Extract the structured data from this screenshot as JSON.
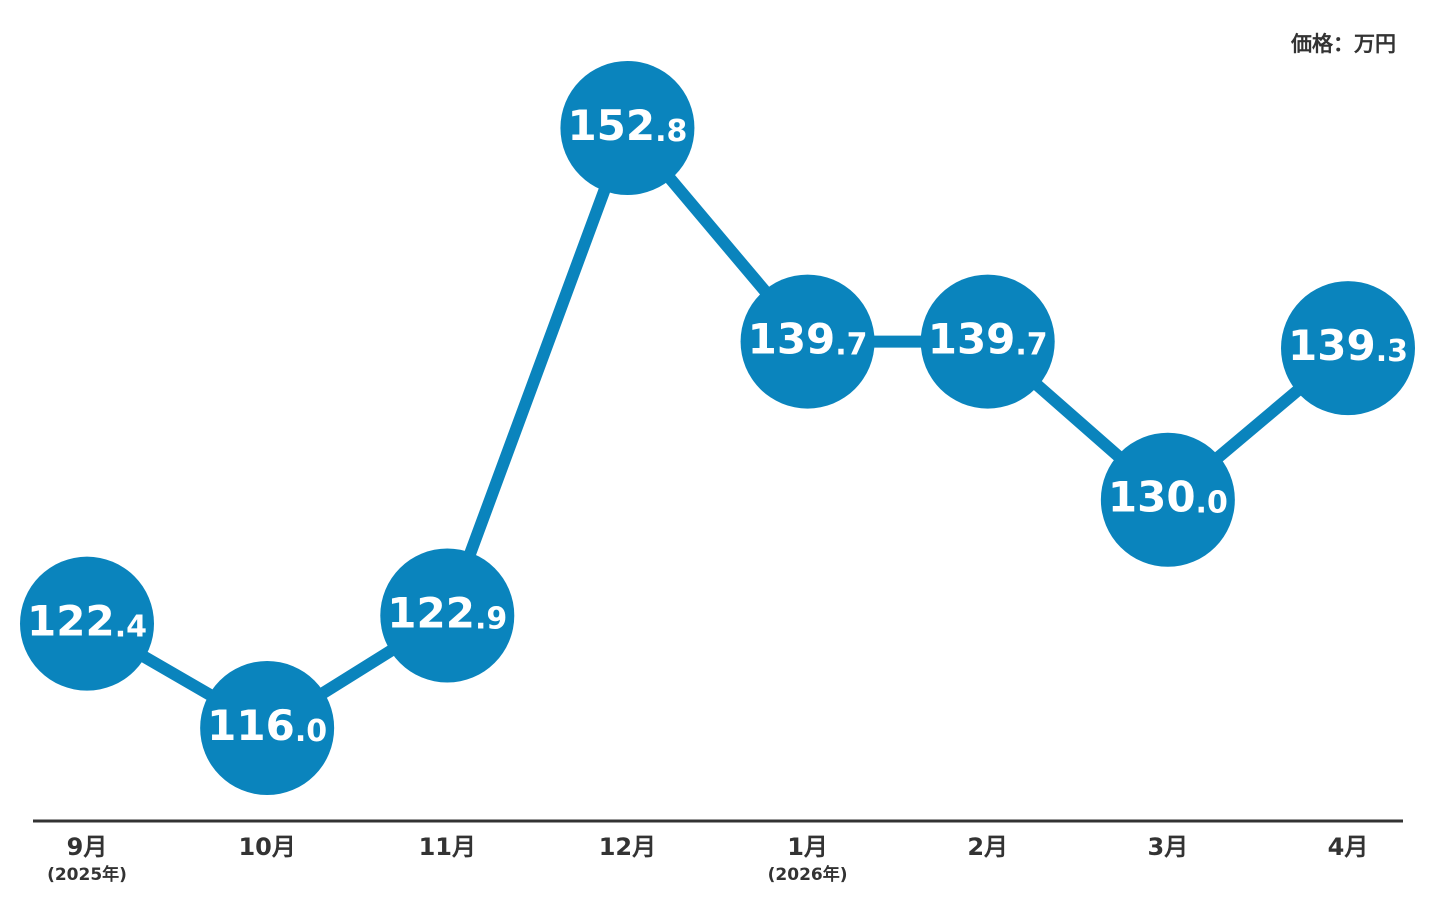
{
  "chart_data": {
    "type": "line",
    "unit_label": "価格：万円",
    "categories": [
      "9月",
      "10月",
      "11月",
      "12月",
      "1月",
      "2月",
      "3月",
      "4月"
    ],
    "sublabels": [
      "(2025年)",
      null,
      null,
      null,
      "(2026年)",
      null,
      null,
      null
    ],
    "series": [
      {
        "color": "#0a84bd",
        "values": [
          122.4,
          116.0,
          122.9,
          152.8,
          139.7,
          139.7,
          130.0,
          139.3
        ],
        "value_labels": [
          "122.4",
          "116.0",
          "122.9",
          "152.8",
          "139.7",
          "139.7",
          "130.0",
          "139.3"
        ]
      }
    ]
  }
}
